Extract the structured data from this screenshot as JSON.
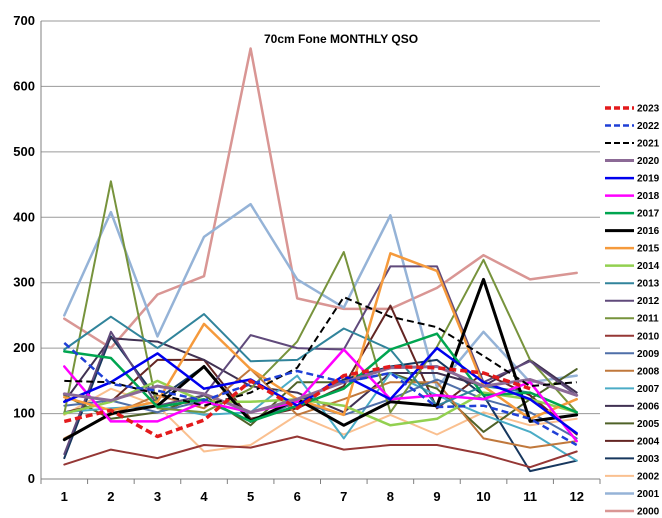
{
  "chart_data": {
    "type": "line",
    "title": "70cm Fone MONTHLY QSO",
    "xlabel": "",
    "ylabel": "",
    "x": [
      1,
      2,
      3,
      4,
      5,
      6,
      7,
      8,
      9,
      10,
      11,
      12
    ],
    "ylim": [
      0,
      700
    ],
    "yticks": [
      0,
      100,
      200,
      300,
      400,
      500,
      600,
      700
    ],
    "grid": true,
    "legend_position": "right",
    "series": [
      {
        "name": "2023",
        "color": "#e31a1c",
        "dash": "dash",
        "width": 3.5,
        "values": [
          88,
          105,
          65,
          90,
          150,
          108,
          158,
          172,
          170,
          162,
          138,
          null
        ]
      },
      {
        "name": "2022",
        "color": "#1f3fd6",
        "dash": "dash",
        "width": 2.5,
        "values": [
          208,
          145,
          135,
          120,
          145,
          165,
          148,
          162,
          110,
          112,
          92,
          52
        ]
      },
      {
        "name": "2021",
        "color": "#000000",
        "dash": "dash",
        "width": 2,
        "values": [
          150,
          148,
          130,
          112,
          132,
          170,
          278,
          248,
          232,
          188,
          142,
          148
        ]
      },
      {
        "name": "2020",
        "color": "#8c6a96",
        "dash": "solid",
        "width": 3,
        "values": [
          130,
          120,
          142,
          130,
          102,
          122,
          148,
          170,
          172,
          142,
          152,
          128
        ]
      },
      {
        "name": "2019",
        "color": "#0000ee",
        "dash": "solid",
        "width": 2.5,
        "values": [
          118,
          148,
          192,
          138,
          152,
          112,
          158,
          122,
          200,
          148,
          122,
          70
        ]
      },
      {
        "name": "2018",
        "color": "#ff00ff",
        "dash": "solid",
        "width": 2.5,
        "values": [
          172,
          88,
          88,
          118,
          102,
          118,
          198,
          122,
          128,
          122,
          148,
          58
        ]
      },
      {
        "name": "2017",
        "color": "#00a550",
        "dash": "solid",
        "width": 2.5,
        "values": [
          195,
          185,
          110,
          122,
          88,
          112,
          138,
          198,
          222,
          128,
          132,
          102
        ]
      },
      {
        "name": "2016",
        "color": "#000000",
        "dash": "solid",
        "width": 3,
        "values": [
          60,
          100,
          112,
          172,
          88,
          122,
          82,
          118,
          112,
          305,
          88,
          98
        ]
      },
      {
        "name": "2015",
        "color": "#f59a3c",
        "dash": "solid",
        "width": 2.5,
        "values": [
          125,
          105,
          118,
          237,
          168,
          122,
          98,
          345,
          318,
          142,
          92,
          122
        ]
      },
      {
        "name": "2014",
        "color": "#92d050",
        "dash": "solid",
        "width": 2.5,
        "values": [
          100,
          118,
          150,
          118,
          118,
          122,
          112,
          82,
          92,
          132,
          122,
          102
        ]
      },
      {
        "name": "2013",
        "color": "#31849b",
        "dash": "solid",
        "width": 2,
        "values": [
          198,
          248,
          200,
          252,
          180,
          182,
          230,
          198,
          112,
          142,
          132,
          102
        ]
      },
      {
        "name": "2012",
        "color": "#604a7b",
        "dash": "solid",
        "width": 2,
        "values": [
          38,
          225,
          112,
          128,
          220,
          200,
          198,
          325,
          325,
          148,
          180,
          128
        ]
      },
      {
        "name": "2011",
        "color": "#77933c",
        "dash": "solid",
        "width": 2,
        "values": [
          100,
          455,
          108,
          102,
          138,
          210,
          347,
          102,
          202,
          335,
          182,
          102
        ]
      },
      {
        "name": "2010",
        "color": "#953735",
        "dash": "solid",
        "width": 2,
        "values": [
          22,
          45,
          32,
          52,
          48,
          65,
          45,
          52,
          52,
          38,
          18,
          42
        ]
      },
      {
        "name": "2009",
        "color": "#4f6fa8",
        "dash": "solid",
        "width": 2,
        "values": [
          112,
          120,
          102,
          120,
          88,
          118,
          98,
          122,
          152,
          122,
          102,
          62
        ]
      },
      {
        "name": "2008",
        "color": "#c0783c",
        "dash": "solid",
        "width": 2,
        "values": [
          62,
          98,
          128,
          108,
          168,
          98,
          122,
          148,
          148,
          62,
          48,
          58
        ]
      },
      {
        "name": "2007",
        "color": "#4bacc6",
        "dash": "solid",
        "width": 2,
        "values": [
          102,
          108,
          112,
          98,
          102,
          158,
          62,
          162,
          128,
          98,
          72,
          28
        ]
      },
      {
        "name": "2006",
        "color": "#403152",
        "dash": "solid",
        "width": 2,
        "values": [
          118,
          215,
          210,
          182,
          142,
          132,
          102,
          162,
          162,
          142,
          182,
          132
        ]
      },
      {
        "name": "2005",
        "color": "#4f6228",
        "dash": "solid",
        "width": 2,
        "values": [
          128,
          92,
          102,
          128,
          82,
          148,
          148,
          162,
          138,
          72,
          122,
          168
        ]
      },
      {
        "name": "2004",
        "color": "#632523",
        "dash": "solid",
        "width": 2,
        "values": [
          102,
          118,
          182,
          182,
          92,
          108,
          142,
          265,
          108,
          162,
          128,
          68
        ]
      },
      {
        "name": "2003",
        "color": "#17375e",
        "dash": "solid",
        "width": 2,
        "values": [
          32,
          218,
          122,
          172,
          88,
          118,
          152,
          172,
          182,
          128,
          12,
          28
        ]
      },
      {
        "name": "2002",
        "color": "#fac090",
        "dash": "solid",
        "width": 2,
        "values": [
          98,
          138,
          112,
          42,
          52,
          98,
          68,
          98,
          68,
          102,
          82,
          92
        ]
      },
      {
        "name": "2001",
        "color": "#95b3d7",
        "dash": "solid",
        "width": 2.5,
        "values": [
          250,
          408,
          218,
          370,
          420,
          305,
          262,
          403,
          140,
          225,
          148,
          158
        ]
      },
      {
        "name": "2000",
        "color": "#d99694",
        "dash": "solid",
        "width": 2.5,
        "values": [
          245,
          200,
          282,
          310,
          658,
          276,
          260,
          260,
          292,
          342,
          305,
          315
        ]
      }
    ]
  }
}
